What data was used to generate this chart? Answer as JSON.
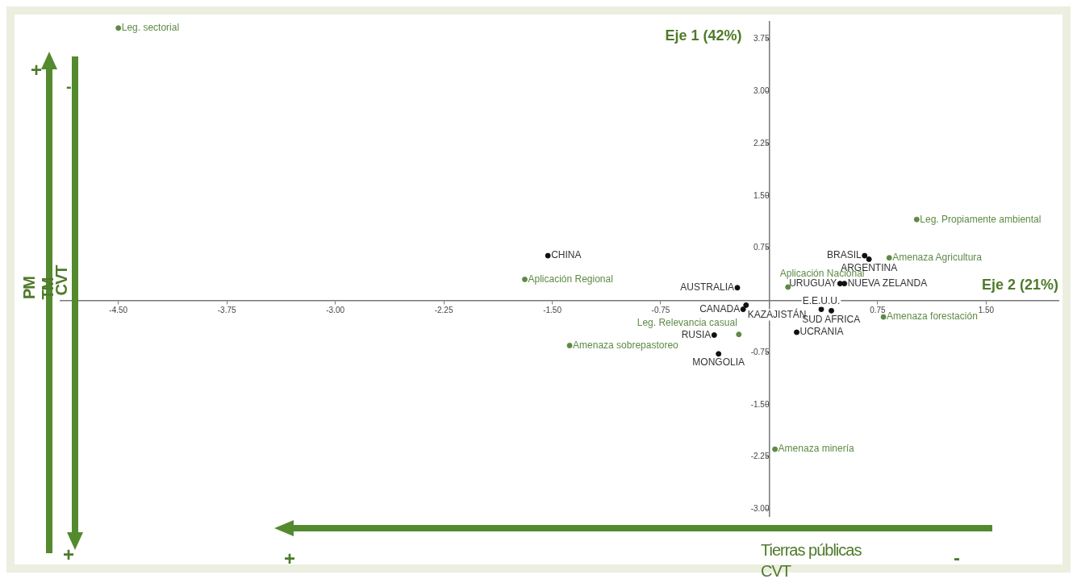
{
  "chart_data": {
    "type": "scatter",
    "xlabel": "Eje 2 (21%)",
    "ylabel": "Eje 1 (42%)",
    "xlim": [
      -4.9,
      2.0
    ],
    "ylim": [
      -3.1,
      4.0
    ],
    "xticks": [
      {
        "value": -4.5,
        "label": "-4.50"
      },
      {
        "value": -3.75,
        "label": "-3.75"
      },
      {
        "value": -3,
        "label": "-3.00"
      },
      {
        "value": -2.25,
        "label": "-2.25"
      },
      {
        "value": -1.5,
        "label": "-1.50"
      },
      {
        "value": -0.75,
        "label": "-0.75"
      },
      {
        "value": 0.75,
        "label": "0.75"
      },
      {
        "value": 1.5,
        "label": "1.50"
      }
    ],
    "yticks": [
      {
        "value": -3,
        "label": "-3.00"
      },
      {
        "value": -2.25,
        "label": "-2.25"
      },
      {
        "value": -1.5,
        "label": "-1.50"
      },
      {
        "value": -0.75,
        "label": "-0.75"
      },
      {
        "value": 0.75,
        "label": "0.75"
      },
      {
        "value": 1.5,
        "label": "1.50"
      },
      {
        "value": 2.25,
        "label": "2.25"
      },
      {
        "value": 3,
        "label": "3.00"
      },
      {
        "value": 3.75,
        "label": "3.75"
      }
    ],
    "grid": false,
    "legend": false,
    "marker": "circle",
    "series": [
      {
        "color": "#111111",
        "x": [
          -1.53,
          -0.22,
          -0.18,
          -0.16,
          -0.38,
          -0.35,
          0.49,
          0.52,
          0.36,
          0.43,
          0.19,
          0.66,
          0.69
        ],
        "values": [
          0.64,
          0.18,
          -0.13,
          -0.07,
          -0.5,
          -0.77,
          0.24,
          0.24,
          -0.13,
          -0.15,
          -0.46,
          0.64,
          0.59
        ]
      },
      {
        "color": "#5e8a45",
        "x": [
          -4.5,
          -1.69,
          -1.38,
          -0.21,
          0.13,
          0.83,
          1.02,
          0.79,
          0.04
        ],
        "values": [
          3.91,
          0.3,
          -0.65,
          -0.49,
          0.19,
          0.61,
          1.16,
          -0.24,
          -2.14
        ]
      }
    ],
    "annotations": [
      {
        "text": "Leg. sectorial",
        "x": -4.5,
        "y": 3.91
      },
      {
        "text": "CHINA",
        "x": -1.53,
        "y": 0.64
      },
      {
        "text": "Aplicación Regional",
        "x": -1.69,
        "y": 0.3
      },
      {
        "text": "Amenaza sobrepastoreo",
        "x": -1.38,
        "y": -0.65
      },
      {
        "text": "AUSTRALIA",
        "x": -0.22,
        "y": 0.18
      },
      {
        "text": "CANADA",
        "x": -0.18,
        "y": -0.13
      },
      {
        "text": "KAZAJISTÁN",
        "x": -0.16,
        "y": -0.07
      },
      {
        "text": "RUSIA",
        "x": -0.38,
        "y": -0.5
      },
      {
        "text": "Leg. Relevancia casual",
        "x": -0.21,
        "y": -0.49
      },
      {
        "text": "MONGOLIA",
        "x": -0.35,
        "y": -0.77
      },
      {
        "text": "Aplicación Nacional",
        "x": 0.13,
        "y": 0.19
      },
      {
        "text": "URUGUAY",
        "x": 0.49,
        "y": 0.24
      },
      {
        "text": "NUEVA ZELANDA",
        "x": 0.52,
        "y": 0.24
      },
      {
        "text": "E.E.U.U.",
        "x": 0.36,
        "y": -0.13
      },
      {
        "text": "SUD AFRICA",
        "x": 0.43,
        "y": -0.15
      },
      {
        "text": "UCRANIA",
        "x": 0.19,
        "y": -0.46
      },
      {
        "text": "BRASIL",
        "x": 0.66,
        "y": 0.64
      },
      {
        "text": "ARGENTINA",
        "x": 0.69,
        "y": 0.59
      },
      {
        "text": "Amenaza Agricultura",
        "x": 0.83,
        "y": 0.61
      },
      {
        "text": "Leg. Propiamente ambiental",
        "x": 1.02,
        "y": 1.16
      },
      {
        "text": "Amenaza forestación",
        "x": 0.79,
        "y": -0.24
      },
      {
        "text": "Amenaza minería",
        "x": 0.04,
        "y": -2.14
      },
      "+",
      "-",
      "PM",
      "TM",
      "CVT",
      "+",
      "+",
      "Tierras públicas",
      "CVT",
      "-"
    ]
  }
}
